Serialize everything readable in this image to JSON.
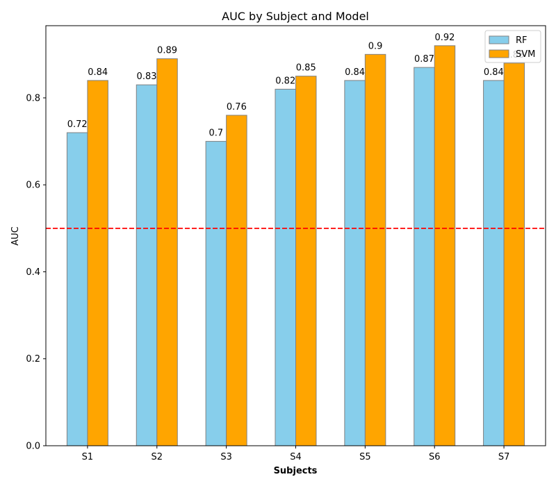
{
  "chart_data": {
    "type": "bar",
    "title": "AUC by Subject and Model",
    "xlabel": "Subjects",
    "ylabel": "AUC",
    "categories": [
      "S1",
      "S2",
      "S3",
      "S4",
      "S5",
      "S6",
      "S7"
    ],
    "series": [
      {
        "name": "RF",
        "values": [
          0.72,
          0.83,
          0.7,
          0.82,
          0.84,
          0.87,
          0.84
        ],
        "labels": [
          "0.72",
          "0.83",
          "0.7",
          "0.82",
          "0.84",
          "0.87",
          "0.84"
        ],
        "color": "#87CEEB"
      },
      {
        "name": "SVM",
        "values": [
          0.84,
          0.89,
          0.76,
          0.85,
          0.9,
          0.92,
          0.88
        ],
        "labels": [
          "0.84",
          "0.89",
          "0.76",
          "0.85",
          "0.9",
          "0.92",
          "0.88"
        ],
        "color": "#FFA500"
      }
    ],
    "bar_edge_color": "#808080",
    "reference_line": {
      "y": 0.5,
      "color": "#FF0000",
      "style": "dashed"
    },
    "ylim": [
      0,
      0.966
    ],
    "yticks": [
      "0.0",
      "0.2",
      "0.4",
      "0.6",
      "0.8"
    ],
    "ytick_values": [
      0,
      0.2,
      0.4,
      0.6,
      0.8
    ],
    "legend_position": "top-right",
    "grid": false
  }
}
